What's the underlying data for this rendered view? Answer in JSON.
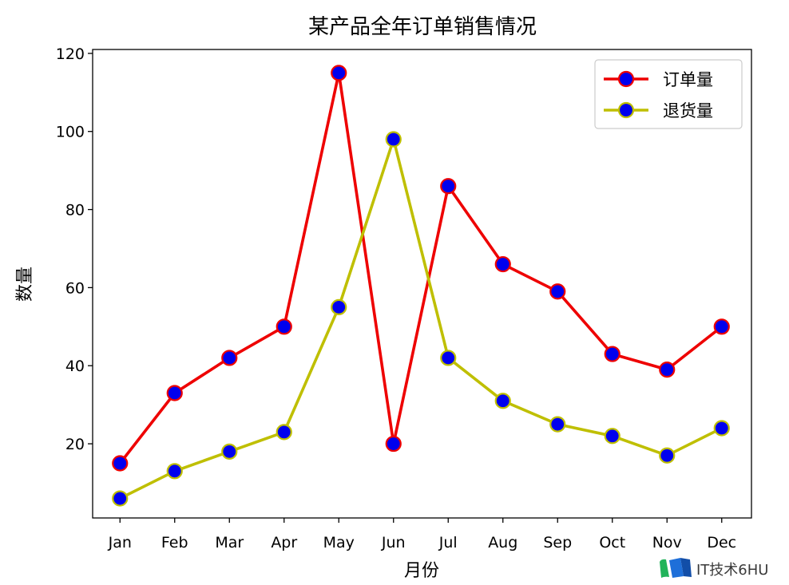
{
  "chart_data": {
    "type": "line",
    "title": "某产品全年订单销售情况",
    "xlabel": "月份",
    "ylabel": "数量",
    "categories": [
      "Jan",
      "Feb",
      "Mar",
      "Apr",
      "May",
      "Jun",
      "Jul",
      "Aug",
      "Sep",
      "Oct",
      "Nov",
      "Dec"
    ],
    "series": [
      {
        "name": "订单量",
        "values": [
          15,
          33,
          42,
          50,
          115,
          20,
          86,
          66,
          59,
          43,
          39,
          50
        ],
        "line_color": "#ee0000",
        "marker_face": "#0000ee",
        "marker_edge": "#ee0000"
      },
      {
        "name": "退货量",
        "values": [
          6,
          13,
          18,
          23,
          55,
          98,
          42,
          31,
          25,
          22,
          17,
          24
        ],
        "line_color": "#bfbf00",
        "marker_face": "#0000ee",
        "marker_edge": "#bfbf00"
      }
    ],
    "ylim": [
      1,
      121
    ],
    "yticks": [
      20,
      40,
      60,
      80,
      100,
      120
    ],
    "grid": false,
    "legend_position": "top-right"
  },
  "watermark": {
    "text": "IT技术6HU"
  }
}
